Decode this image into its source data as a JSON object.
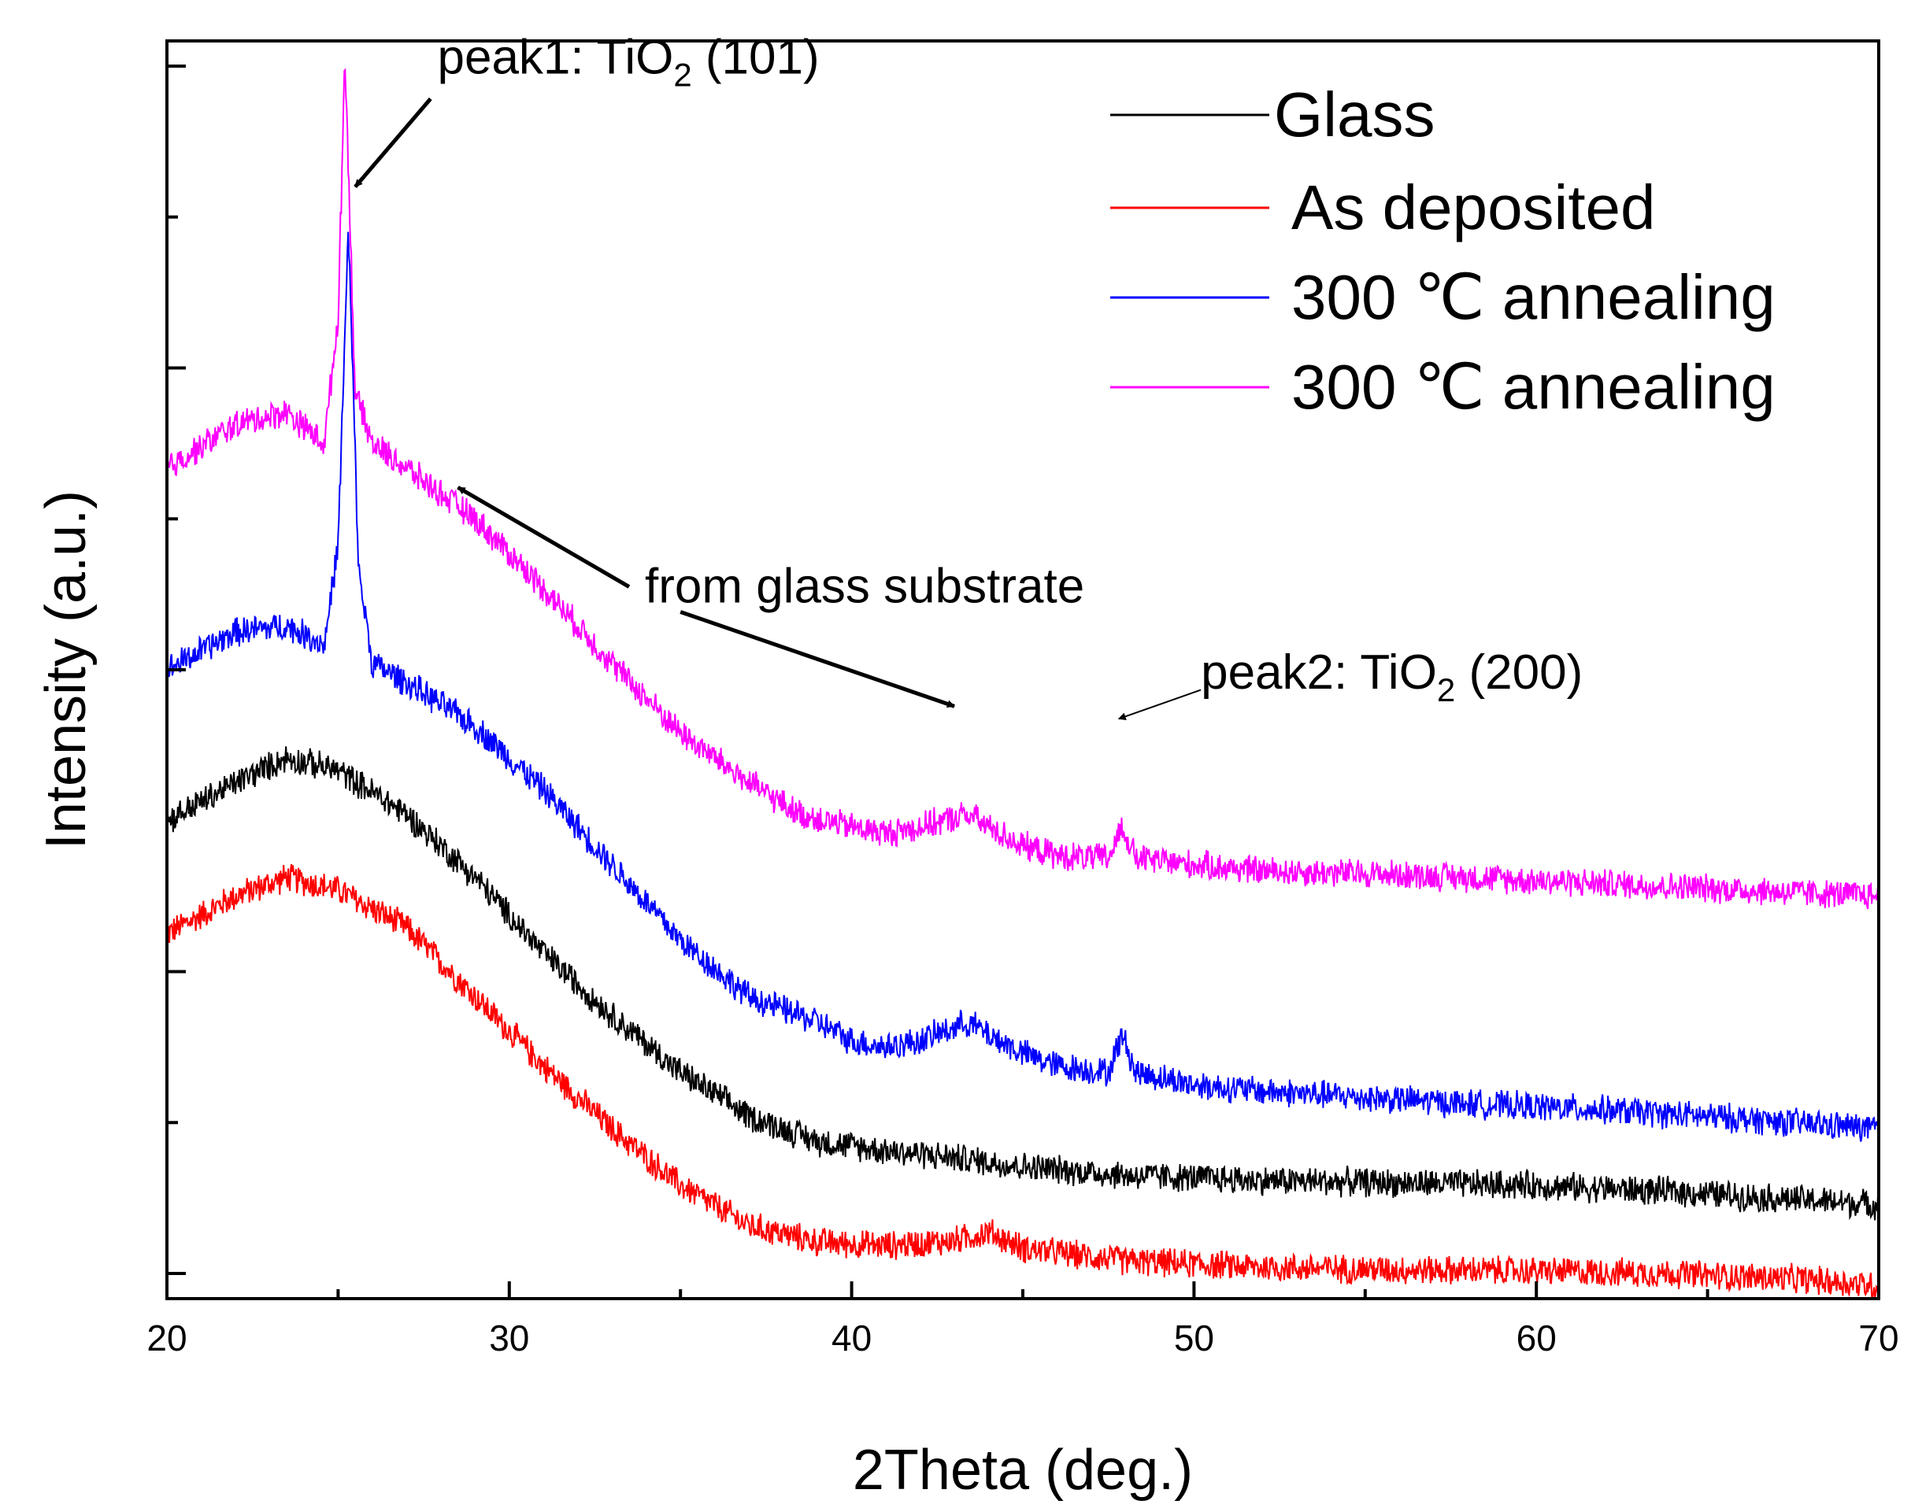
{
  "chart_data": {
    "type": "line",
    "title": "",
    "xlabel": "2Theta (deg.)",
    "ylabel": "Intensity (a.u.)",
    "xlim": [
      20,
      70
    ],
    "ylim": [
      0,
      100
    ],
    "x_ticks": [
      20,
      30,
      40,
      50,
      60,
      70
    ],
    "x_tick_labels": [
      "20",
      "30",
      "40",
      "50",
      "60",
      "70"
    ],
    "y_tick_labels_shown": false,
    "grid": false,
    "legend_position": "top-right",
    "series": [
      {
        "name": "Glass",
        "color": "#000000",
        "x": [
          20,
          22,
          23.5,
          25,
          27,
          29,
          31,
          33,
          35,
          37,
          39,
          41,
          43,
          45,
          48,
          52,
          56,
          60,
          64,
          68,
          70
        ],
        "values": [
          38,
          41,
          43,
          42,
          38.5,
          33.5,
          27.5,
          22.5,
          18,
          14.5,
          12.5,
          11.8,
          11.2,
          10.5,
          9.8,
          9.4,
          9.2,
          9.0,
          8.5,
          7.8,
          7.5
        ],
        "noise": 1.3
      },
      {
        "name": "As deposited",
        "color": "#ff0000",
        "x": [
          20,
          22,
          23.5,
          25,
          27,
          29,
          31,
          33,
          35,
          37,
          39,
          41,
          43,
          44,
          45,
          48,
          52,
          56,
          60,
          64,
          68,
          70
        ],
        "values": [
          29,
          32,
          33.5,
          32.5,
          29.5,
          24,
          18.5,
          13.5,
          9,
          5.8,
          4.5,
          4.2,
          4.6,
          5.3,
          4.0,
          3.0,
          2.5,
          2.3,
          2.2,
          2.0,
          1.5,
          1.0
        ],
        "noise": 1.3
      },
      {
        "name": "300 ℃ annealing",
        "color": "#0000ff",
        "x": [
          20,
          22,
          23.5,
          24.6,
          25,
          25.3,
          25.6,
          26,
          27,
          29,
          31,
          33,
          35,
          37,
          38,
          39,
          40,
          41,
          42,
          43.4,
          44,
          45,
          46,
          47.5,
          47.9,
          48.3,
          50,
          52,
          55,
          58,
          62,
          66,
          70
        ],
        "values": [
          50,
          53,
          53.5,
          52,
          60,
          85,
          58,
          50.5,
          49,
          45.5,
          40.5,
          34.5,
          28.5,
          24,
          23,
          22,
          20.5,
          20,
          20.5,
          22,
          21,
          19.5,
          18.5,
          18,
          21,
          18,
          17,
          16.5,
          16,
          15.5,
          15,
          14.3,
          13.5
        ],
        "noise": 1.3
      },
      {
        "name": "300 ℃ annealing",
        "color": "#ff00ff",
        "x": [
          20,
          22,
          23.5,
          24.6,
          25,
          25.2,
          25.5,
          26,
          27,
          29,
          31,
          33,
          35,
          37,
          38.5,
          40,
          41,
          42,
          43.4,
          44,
          45,
          46,
          47.5,
          47.9,
          48.3,
          50,
          52,
          55,
          58,
          62,
          66,
          70
        ],
        "values": [
          66,
          69.5,
          70.5,
          68,
          78,
          99,
          72,
          68,
          66,
          62,
          56.5,
          50.5,
          45,
          41,
          38.5,
          37.5,
          37,
          37.5,
          38.5,
          37.5,
          36,
          35.2,
          35,
          37.5,
          35,
          34.5,
          34,
          33.8,
          33.5,
          33,
          32.5,
          32
        ],
        "noise": 1.3
      }
    ],
    "annotations": [
      {
        "id": "peak1",
        "text_main": "peak1: TiO",
        "text_sub": "2",
        "text_tail": " (101)",
        "text_x": 27.9,
        "text_y": 97.4,
        "arrow_to": [
          25.5,
          88.4
        ],
        "arrow_from": [
          27.7,
          95.4
        ]
      },
      {
        "id": "glass-substrate",
        "text_main": "from glass substrate",
        "text_x": 33.5,
        "text_y": 56.6,
        "arrows": [
          {
            "from": [
              33.5,
              56.6
            ],
            "to": [
              28.5,
              64.5
            ]
          },
          {
            "from": [
              35.0,
              54.6
            ],
            "to": [
              43.0,
              47.1
            ]
          }
        ]
      },
      {
        "id": "peak2",
        "text_main": "peak2: TiO",
        "text_sub": "2",
        "text_tail": " (200)",
        "text_x": 50.2,
        "text_y": 48.5,
        "arrow_from": [
          50.2,
          48.4
        ],
        "arrow_to": [
          47.8,
          46.1
        ]
      }
    ]
  }
}
